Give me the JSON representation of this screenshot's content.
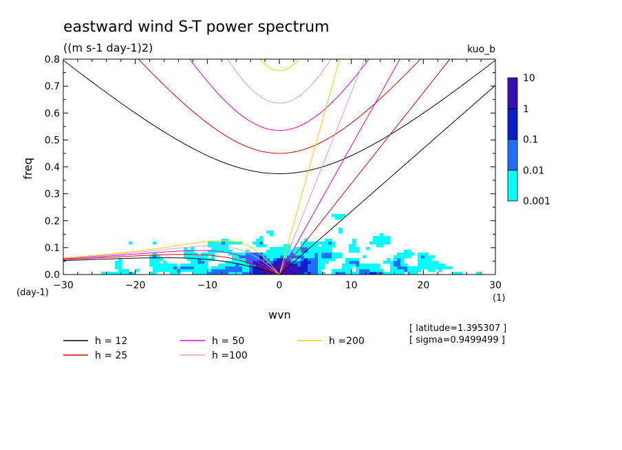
{
  "chart_data": {
    "type": "heatmap",
    "title": "eastward wind S-T power spectrum",
    "subtitle": "((m s-1 day-1)2)",
    "tag": "kuo_b",
    "xlabel": "wvn",
    "ylabel": "freq",
    "x_unit": "(1)",
    "y_unit": "(day-1)",
    "xlim": [
      -30,
      30
    ],
    "ylim": [
      0,
      0.8
    ],
    "x_ticks": [
      -30,
      -20,
      -10,
      0,
      10,
      20,
      30
    ],
    "x_tick_labels": [
      "−30",
      "−20",
      "−10",
      "0",
      "10",
      "20",
      "30"
    ],
    "y_ticks": [
      0,
      0.1,
      0.2,
      0.3,
      0.4,
      0.5,
      0.6,
      0.7,
      0.8
    ],
    "y_tick_labels": [
      "0.0",
      "0.1",
      "0.2",
      "0.3",
      "0.4",
      "0.5",
      "0.6",
      "0.7",
      "0.8"
    ],
    "colorbar": {
      "levels": [
        "0.001",
        "0.01",
        "0.1",
        "1",
        "10"
      ],
      "colors": [
        "#00ffff",
        "#1e6eff",
        "#0a1ec8",
        "#3c0fb4"
      ]
    },
    "dispersion_curves": [
      {
        "name": "h = 12",
        "h": 12,
        "color": "#000000"
      },
      {
        "name": "h = 25",
        "h": 25,
        "color": "#e00000"
      },
      {
        "name": "h = 50",
        "h": 50,
        "color": "#e000d0"
      },
      {
        "name": "h =100",
        "h": 100,
        "color": "#dc96dc"
      },
      {
        "name": "h =200",
        "h": 200,
        "color": "#f0d000"
      }
    ],
    "info": [
      "[ latitude=1.395307 ]",
      "[ sigma=0.9499499 ]"
    ]
  }
}
